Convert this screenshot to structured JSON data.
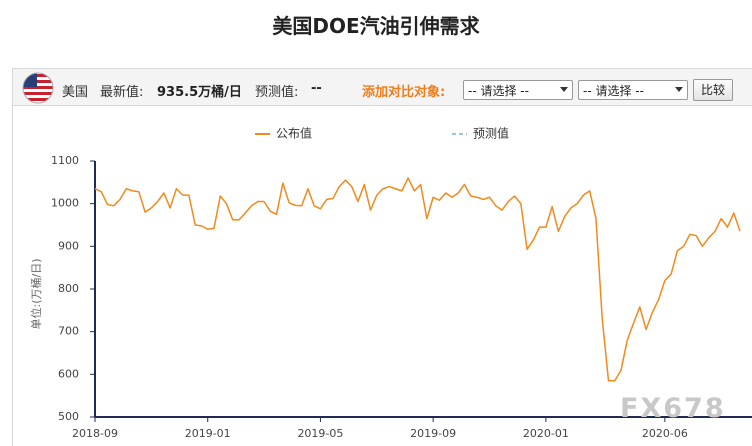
{
  "toolbar": {
    "country": "美国",
    "latest_label": "最新值:",
    "latest_value": "935.5万桶/日",
    "forecast_label": "预测值:",
    "forecast_value": "--",
    "compare_label": "添加对比对象:",
    "select_1": "-- 请选择 --",
    "select_2": "-- 请选择 --",
    "button": "比较"
  },
  "watermark": "FX678",
  "chart_data": {
    "type": "line",
    "title": "美国DOE汽油引伸需求",
    "y_label": "单位:(万桶/日)",
    "categories": [
      "2018-09",
      null,
      null,
      null,
      null,
      null,
      null,
      null,
      null,
      null,
      null,
      null,
      null,
      null,
      null,
      null,
      null,
      null,
      "2019-01",
      null,
      null,
      null,
      null,
      null,
      null,
      null,
      null,
      null,
      null,
      null,
      null,
      null,
      null,
      null,
      null,
      null,
      "2019-05",
      null,
      null,
      null,
      null,
      null,
      null,
      null,
      null,
      null,
      null,
      null,
      null,
      null,
      null,
      null,
      null,
      null,
      "2019-09",
      null,
      null,
      null,
      null,
      null,
      null,
      null,
      null,
      null,
      null,
      null,
      null,
      null,
      null,
      null,
      null,
      null,
      "2020-01",
      null,
      null,
      null,
      null,
      null,
      null,
      null,
      null,
      null,
      null,
      null,
      null,
      null,
      null,
      null,
      null,
      null,
      null,
      "2020-06",
      null,
      null,
      null,
      null,
      null,
      null,
      null,
      null,
      null,
      null,
      null,
      null
    ],
    "series": [
      {
        "name": "公布值",
        "color": "#f08a1c",
        "values": [
          1035,
          1028,
          998,
          995,
          1010,
          1035,
          1030,
          1028,
          980,
          990,
          1005,
          1025,
          990,
          1035,
          1020,
          1020,
          950,
          948,
          940,
          942,
          1018,
          1000,
          962,
          962,
          978,
          995,
          1005,
          1005,
          982,
          975,
          1048,
          1002,
          996,
          995,
          1035,
          995,
          988,
          1010,
          1012,
          1040,
          1055,
          1040,
          1005,
          1045,
          985,
          1020,
          1035,
          1040,
          1035,
          1030,
          1060,
          1030,
          1045,
          965,
          1015,
          1008,
          1025,
          1015,
          1025,
          1045,
          1018,
          1015,
          1010,
          1015,
          995,
          985,
          1005,
          1018,
          1000,
          893,
          915,
          945,
          945,
          993,
          935,
          970,
          990,
          1000,
          1020,
          1030,
          965,
          730,
          585,
          585,
          610,
          680,
          720,
          758,
          705,
          745,
          775,
          820,
          835,
          890,
          900,
          928,
          925,
          900,
          920,
          935,
          965,
          945,
          978,
          935.5
        ]
      },
      {
        "name": "预测值",
        "color": "#9dc3e6",
        "dash": true,
        "values": [
          null,
          null,
          null,
          null,
          null,
          null,
          null,
          null,
          null,
          null,
          null,
          null,
          null,
          null,
          null,
          null,
          null,
          null,
          null,
          null,
          null,
          null,
          null,
          null,
          null,
          null,
          null,
          null,
          null,
          null,
          null,
          null,
          null,
          null,
          null,
          null,
          null,
          null,
          null,
          null,
          null,
          null,
          null,
          null,
          null,
          null,
          null,
          null,
          null,
          null,
          null,
          null,
          null,
          null,
          null,
          null,
          null,
          null,
          null,
          null,
          null,
          null,
          null,
          null,
          null,
          null,
          null,
          null,
          null,
          null,
          null,
          null,
          null,
          null,
          null,
          null,
          null,
          null,
          null,
          null,
          null,
          null,
          null,
          null,
          null,
          null,
          null,
          null,
          null,
          null,
          null,
          null,
          null,
          null,
          null,
          null,
          null,
          null,
          null,
          null,
          null,
          null,
          null,
          null
        ]
      }
    ],
    "ylim": [
      500,
      1100
    ],
    "yticks": [
      500,
      600,
      700,
      800,
      900,
      1000,
      1100
    ],
    "grid": false
  }
}
